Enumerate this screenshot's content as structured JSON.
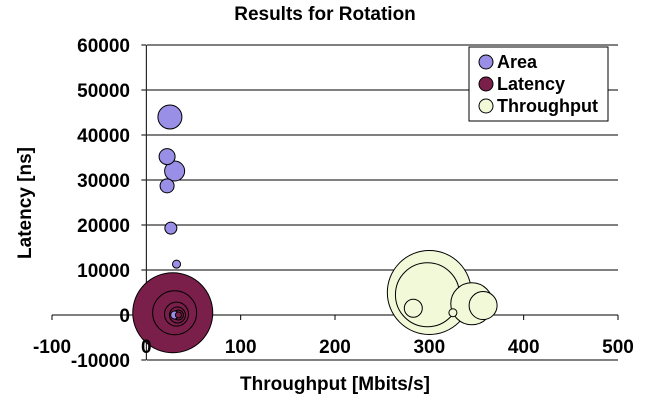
{
  "chart_data": {
    "type": "bubble",
    "title": "Results for Rotation",
    "xlabel": "Throughput [Mbits/s]",
    "ylabel": "Latency [ns]",
    "xlim": [
      -100,
      500
    ],
    "ylim": [
      -10000,
      60000
    ],
    "x_ticks": [
      -100,
      0,
      100,
      200,
      300,
      400,
      500
    ],
    "y_ticks": [
      -10000,
      0,
      10000,
      20000,
      30000,
      40000,
      50000,
      60000
    ],
    "x_tick_labels": [
      "-100",
      "0",
      "100",
      "200",
      "300",
      "400",
      "500"
    ],
    "y_tick_labels": [
      "-10000",
      "0",
      "10000",
      "20000",
      "30000",
      "40000",
      "50000",
      "60000"
    ],
    "grid": "horizontal",
    "legend_position": "top-right",
    "series": [
      {
        "name": "Area",
        "color": "#9a8fe6",
        "points": [
          {
            "x": 25,
            "y": 44000,
            "size": 12
          },
          {
            "x": 22,
            "y": 35200,
            "size": 8
          },
          {
            "x": 30,
            "y": 32000,
            "size": 10
          },
          {
            "x": 22,
            "y": 28700,
            "size": 7
          },
          {
            "x": 26,
            "y": 19300,
            "size": 6
          },
          {
            "x": 32,
            "y": 11300,
            "size": 4
          },
          {
            "x": 30,
            "y": 0,
            "size": 4
          }
        ]
      },
      {
        "name": "Latency",
        "color": "#7a1f4a",
        "points": [
          {
            "x": 28,
            "y": 500,
            "size": 40
          },
          {
            "x": 30,
            "y": 500,
            "size": 22
          },
          {
            "x": 32,
            "y": 200,
            "size": 12
          },
          {
            "x": 33,
            "y": 0,
            "size": 8
          },
          {
            "x": 34,
            "y": 0,
            "size": 5
          },
          {
            "x": 34,
            "y": 0,
            "size": 3
          }
        ]
      },
      {
        "name": "Throughput",
        "color": "#f2f9d9",
        "points": [
          {
            "x": 300,
            "y": 5000,
            "size": 42
          },
          {
            "x": 298,
            "y": 4500,
            "size": 32
          },
          {
            "x": 345,
            "y": 2500,
            "size": 21
          },
          {
            "x": 357,
            "y": 2100,
            "size": 14
          },
          {
            "x": 283,
            "y": 1500,
            "size": 9
          },
          {
            "x": 325,
            "y": 500,
            "size": 4
          }
        ]
      }
    ]
  }
}
